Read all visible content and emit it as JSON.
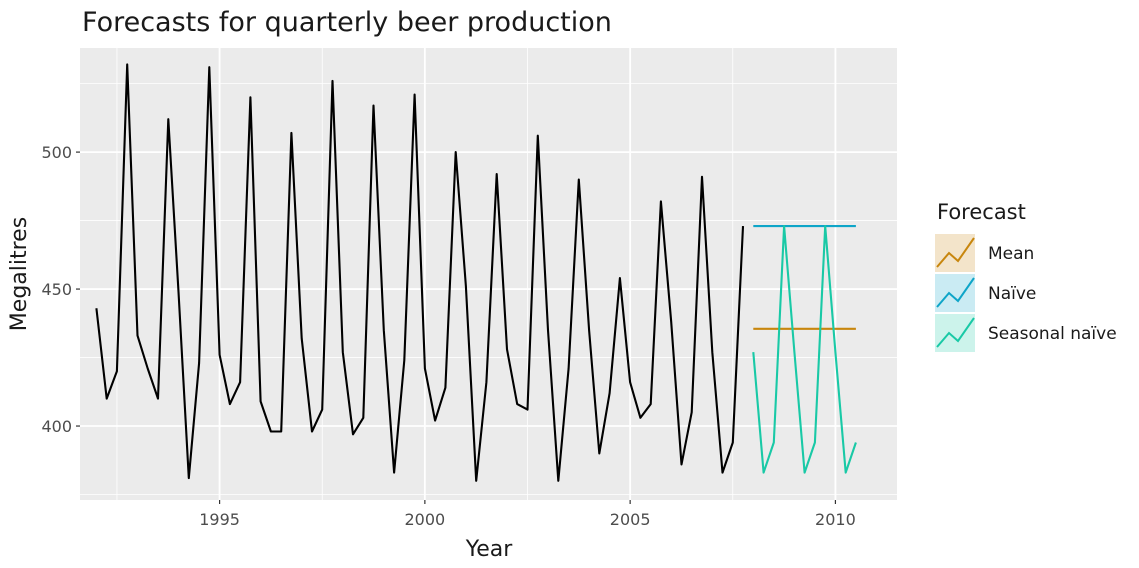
{
  "chart_data": {
    "type": "line",
    "title": "Forecasts for quarterly beer production",
    "xlabel": "Year",
    "ylabel": "Megalitres",
    "x_ticks": [
      1995,
      2000,
      2005,
      2010
    ],
    "y_ticks": [
      400,
      450,
      500
    ],
    "xlim": [
      1991.6,
      2011.5
    ],
    "ylim": [
      373,
      538
    ],
    "grid": true,
    "legend_position": "right",
    "legend_title": "Forecast",
    "history": {
      "x": [
        1992.0,
        1992.25,
        1992.5,
        1992.75,
        1993.0,
        1993.25,
        1993.5,
        1993.75,
        1994.0,
        1994.25,
        1994.5,
        1994.75,
        1995.0,
        1995.25,
        1995.5,
        1995.75,
        1996.0,
        1996.25,
        1996.5,
        1996.75,
        1997.0,
        1997.25,
        1997.5,
        1997.75,
        1998.0,
        1998.25,
        1998.5,
        1998.75,
        1999.0,
        1999.25,
        1999.5,
        1999.75,
        2000.0,
        2000.25,
        2000.5,
        2000.75,
        2001.0,
        2001.25,
        2001.5,
        2001.75,
        2002.0,
        2002.25,
        2002.5,
        2002.75,
        2003.0,
        2003.25,
        2003.5,
        2003.75,
        2004.0,
        2004.25,
        2004.5,
        2004.75,
        2005.0,
        2005.25,
        2005.5,
        2005.75,
        2006.0,
        2006.25,
        2006.5,
        2006.75,
        2007.0,
        2007.25,
        2007.5,
        2007.75
      ],
      "y": [
        443,
        410,
        420,
        532,
        433,
        421,
        410,
        512,
        449,
        381,
        423,
        531,
        426,
        408,
        416,
        520,
        409,
        398,
        398,
        507,
        432,
        398,
        406,
        526,
        427,
        397,
        403,
        517,
        435,
        383,
        424,
        521,
        421,
        402,
        414,
        500,
        451,
        380,
        416,
        492,
        428,
        408,
        406,
        506,
        435,
        380,
        421,
        490,
        435,
        390,
        412,
        454,
        416,
        403,
        408,
        482,
        438,
        386,
        405,
        491,
        427,
        383,
        394,
        473
      ]
    },
    "series": [
      {
        "name": "Mean",
        "color": "#c8860d",
        "x": [
          2008.0,
          2008.25,
          2008.5,
          2008.75,
          2009.0,
          2009.25,
          2009.5,
          2009.75,
          2010.0,
          2010.25,
          2010.5
        ],
        "y": [
          435.5,
          435.5,
          435.5,
          435.5,
          435.5,
          435.5,
          435.5,
          435.5,
          435.5,
          435.5,
          435.5
        ]
      },
      {
        "name": "Naïve",
        "color": "#0ea5c8",
        "x": [
          2008.0,
          2008.25,
          2008.5,
          2008.75,
          2009.0,
          2009.25,
          2009.5,
          2009.75,
          2010.0,
          2010.25,
          2010.5
        ],
        "y": [
          473,
          473,
          473,
          473,
          473,
          473,
          473,
          473,
          473,
          473,
          473
        ]
      },
      {
        "name": "Seasonal naïve",
        "color": "#19c9a6",
        "x": [
          2008.0,
          2008.25,
          2008.5,
          2008.75,
          2009.0,
          2009.25,
          2009.5,
          2009.75,
          2010.0,
          2010.25,
          2010.5
        ],
        "y": [
          427,
          383,
          394,
          473,
          427,
          383,
          394,
          473,
          427,
          383,
          394
        ]
      }
    ]
  }
}
